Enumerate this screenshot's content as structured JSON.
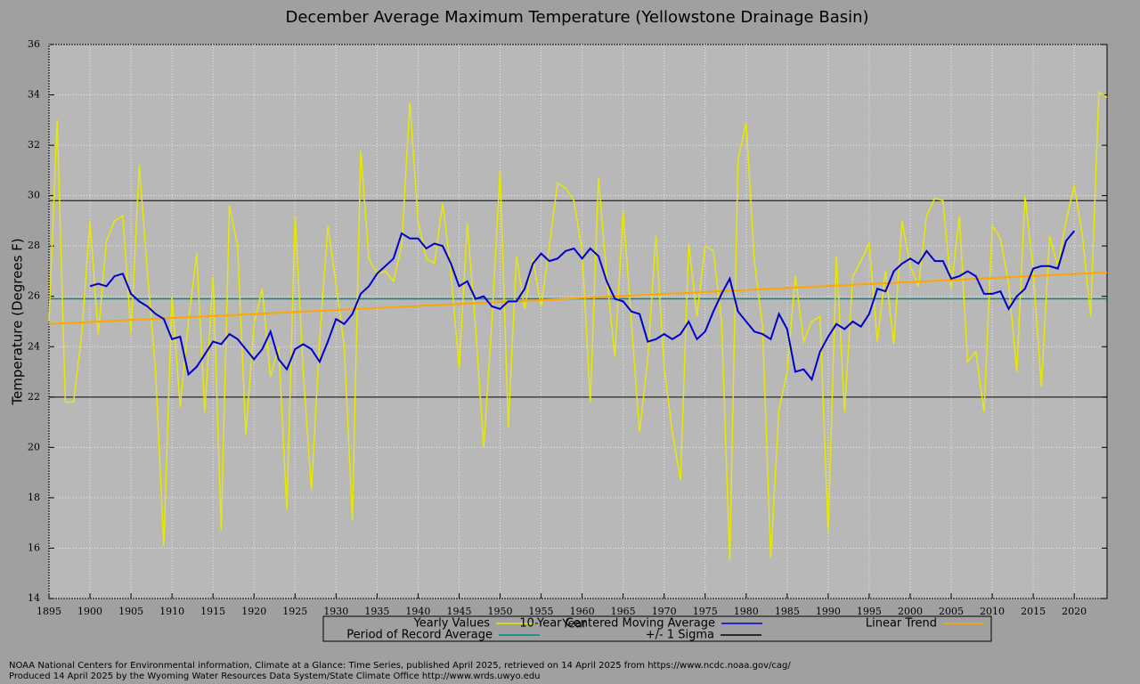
{
  "chart_data": {
    "type": "line",
    "title": "December Average Maximum Temperature (Yellowstone Drainage Basin)",
    "xlabel": "Year",
    "ylabel": "Temperature (Degrees F)",
    "x": [
      1895,
      1896,
      1897,
      1898,
      1899,
      1900,
      1901,
      1902,
      1903,
      1904,
      1905,
      1906,
      1907,
      1908,
      1909,
      1910,
      1911,
      1912,
      1913,
      1914,
      1915,
      1916,
      1917,
      1918,
      1919,
      1920,
      1921,
      1922,
      1923,
      1924,
      1925,
      1926,
      1927,
      1928,
      1929,
      1930,
      1931,
      1932,
      1933,
      1934,
      1935,
      1936,
      1937,
      1938,
      1939,
      1940,
      1941,
      1942,
      1943,
      1944,
      1945,
      1946,
      1947,
      1948,
      1949,
      1950,
      1951,
      1952,
      1953,
      1954,
      1955,
      1956,
      1957,
      1958,
      1959,
      1960,
      1961,
      1962,
      1963,
      1964,
      1965,
      1966,
      1967,
      1968,
      1969,
      1970,
      1971,
      1972,
      1973,
      1974,
      1975,
      1976,
      1977,
      1978,
      1979,
      1980,
      1981,
      1982,
      1983,
      1984,
      1985,
      1986,
      1987,
      1988,
      1989,
      1990,
      1991,
      1992,
      1993,
      1994,
      1995,
      1996,
      1997,
      1998,
      1999,
      2000,
      2001,
      2002,
      2003,
      2004,
      2005,
      2006,
      2007,
      2008,
      2009,
      2010,
      2011,
      2012,
      2013,
      2014,
      2015,
      2016,
      2017,
      2018,
      2019,
      2020,
      2021,
      2022,
      2023,
      2024
    ],
    "series": [
      {
        "name": "Yearly Values",
        "color": "#e8e800",
        "values": [
          25.0,
          33.0,
          21.8,
          21.8,
          24.5,
          29.0,
          24.5,
          28.2,
          29.0,
          29.2,
          24.5,
          31.2,
          27.0,
          23.0,
          16.1,
          26.0,
          21.6,
          25.0,
          27.7,
          21.4,
          26.8,
          16.7,
          29.6,
          28.0,
          20.5,
          24.9,
          26.3,
          22.8,
          24.0,
          17.5,
          29.2,
          23.0,
          18.3,
          24.3,
          28.8,
          26.5,
          24.0,
          17.1,
          31.8,
          27.5,
          26.9,
          27.0,
          26.6,
          28.0,
          33.7,
          29.0,
          27.5,
          27.3,
          29.7,
          27.0,
          23.1,
          28.9,
          24.8,
          20.0,
          25.0,
          31.0,
          20.8,
          27.6,
          25.5,
          27.5,
          25.6,
          28.0,
          30.5,
          30.3,
          29.8,
          27.8,
          21.8,
          30.7,
          26.8,
          23.6,
          29.4,
          25.0,
          20.6,
          23.5,
          28.4,
          23.2,
          20.6,
          18.7,
          28.1,
          25.2,
          28.0,
          27.8,
          25.0,
          15.5,
          31.4,
          32.9,
          27.4,
          24.8,
          15.6,
          21.5,
          23.0,
          26.8,
          24.2,
          25.0,
          25.2,
          16.6,
          27.6,
          21.4,
          26.8,
          27.4,
          28.1,
          24.2,
          27.0,
          24.1,
          29.0,
          27.2,
          26.4,
          29.2,
          29.9,
          29.8,
          26.3,
          29.2,
          23.4,
          23.8,
          21.4,
          28.8,
          28.3,
          26.5,
          23.0,
          30.0,
          27.0,
          22.4,
          28.4,
          27.2,
          29.0,
          30.4,
          28.4,
          25.2,
          34.1,
          33.9
        ]
      },
      {
        "name": "10-Year Centered Moving Average",
        "color": "#0000cd",
        "values": [
          null,
          null,
          null,
          null,
          null,
          26.4,
          26.5,
          26.4,
          26.8,
          26.9,
          26.1,
          25.8,
          25.6,
          25.3,
          25.1,
          24.3,
          24.4,
          22.9,
          23.2,
          23.7,
          24.2,
          24.1,
          24.5,
          24.3,
          23.9,
          23.5,
          23.9,
          24.6,
          23.5,
          23.1,
          23.9,
          24.1,
          23.9,
          23.4,
          24.2,
          25.1,
          24.9,
          25.3,
          26.1,
          26.4,
          26.9,
          27.2,
          27.5,
          28.5,
          28.3,
          28.3,
          27.9,
          28.1,
          28.0,
          27.3,
          26.4,
          26.6,
          25.9,
          26.0,
          25.6,
          25.5,
          25.8,
          25.8,
          26.3,
          27.3,
          27.7,
          27.4,
          27.5,
          27.8,
          27.9,
          27.5,
          27.9,
          27.6,
          26.6,
          25.9,
          25.8,
          25.4,
          25.3,
          24.2,
          24.3,
          24.5,
          24.3,
          24.5,
          25.0,
          24.3,
          24.6,
          25.4,
          26.1,
          26.7,
          25.4,
          25.0,
          24.6,
          24.5,
          24.3,
          25.3,
          24.7,
          23.0,
          23.1,
          22.7,
          23.8,
          24.4,
          24.9,
          24.7,
          25.0,
          24.8,
          25.3,
          26.3,
          26.2,
          27.0,
          27.3,
          27.5,
          27.3,
          27.8,
          27.4,
          27.4,
          26.7,
          26.8,
          27.0,
          26.8,
          26.1,
          26.1,
          26.2,
          25.5,
          26.0,
          26.3,
          27.1,
          27.2,
          27.2,
          27.1,
          28.2,
          28.6,
          null,
          null,
          null,
          null
        ]
      }
    ],
    "trend": {
      "name": "Linear Trend",
      "color": "#ffa500",
      "x": [
        1895,
        2024
      ],
      "values": [
        24.9,
        26.95
      ]
    },
    "average": {
      "name": "Period of Record Average",
      "color": "#008b8b",
      "value": 25.9
    },
    "sigma": {
      "name": "+/- 1 Sigma",
      "color": "#000000",
      "values": [
        29.8,
        22.0
      ]
    },
    "xlim": [
      1895,
      2024
    ],
    "ylim": [
      14,
      36
    ],
    "xticks": [
      1895,
      1900,
      1905,
      1910,
      1915,
      1920,
      1925,
      1930,
      1935,
      1940,
      1945,
      1950,
      1955,
      1960,
      1965,
      1970,
      1975,
      1980,
      1985,
      1990,
      1995,
      2000,
      2005,
      2010,
      2015,
      2020
    ],
    "yticks": [
      14,
      16,
      18,
      20,
      22,
      24,
      26,
      28,
      30,
      32,
      34,
      36
    ],
    "grid": true,
    "source": "NOAA National Centers for Environmental information, Climate at a Glance: Time Series, published April 2025, retrieved on 14 April 2025 from https://www.ncdc.noaa.gov/cag/",
    "credit": "Produced 14 April 2025 by the Wyoming Water Resources Data System/State Climate Office http://www.wrds.uwyo.edu"
  }
}
